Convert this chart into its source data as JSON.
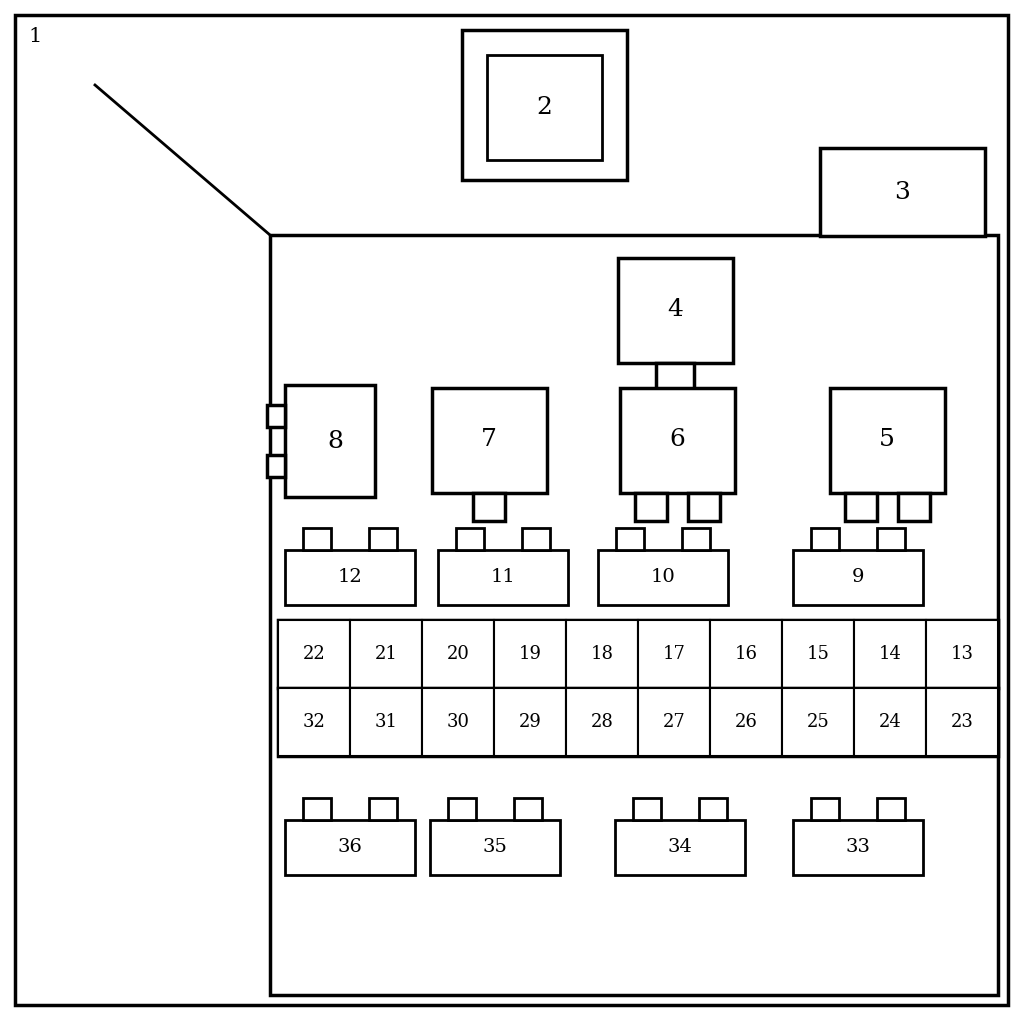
{
  "bg_color": "#ffffff",
  "line_color": "#000000",
  "lw_outer": 2.5,
  "lw_inner": 2.0,
  "lw_thin": 1.5,
  "fig_width": 10.24,
  "fig_height": 10.18
}
